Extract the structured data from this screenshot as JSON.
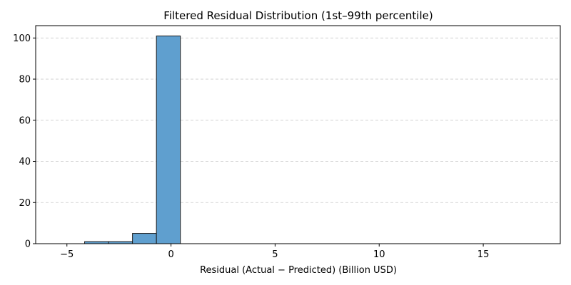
{
  "chart_data": {
    "type": "bar",
    "title": "Filtered Residual Distribution (1st–99th percentile)",
    "xlabel": "Residual (Actual − Predicted) (Billion USD)",
    "ylabel": "",
    "xlim": [
      -6.5,
      18.7
    ],
    "ylim": [
      0,
      106
    ],
    "xticks": [
      -5,
      0,
      5,
      10,
      15
    ],
    "xtick_labels": [
      "−5",
      "0",
      "5",
      "10",
      "15"
    ],
    "yticks": [
      0,
      20,
      40,
      60,
      80,
      100
    ],
    "ytick_labels": [
      "0",
      "20",
      "40",
      "60",
      "80",
      "100"
    ],
    "grid": "y-dashed",
    "bar_color": "#5f9fcf",
    "edge_color": "#1a1a1a",
    "bins": [
      {
        "start": -5.3,
        "end": -4.15,
        "count": 0
      },
      {
        "start": -4.15,
        "end": -3.0,
        "count": 1
      },
      {
        "start": -3.0,
        "end": -1.85,
        "count": 1
      },
      {
        "start": -1.85,
        "end": -0.7,
        "count": 5
      },
      {
        "start": -0.7,
        "end": 0.45,
        "count": 101
      },
      {
        "start": 0.45,
        "end": 1.6,
        "count": 0
      },
      {
        "start": 1.6,
        "end": 2.75,
        "count": 0
      },
      {
        "start": 2.75,
        "end": 3.9,
        "count": 0
      },
      {
        "start": 3.9,
        "end": 5.05,
        "count": 0
      },
      {
        "start": 5.05,
        "end": 6.2,
        "count": 0
      },
      {
        "start": 6.2,
        "end": 7.35,
        "count": 0
      },
      {
        "start": 7.35,
        "end": 8.5,
        "count": 0
      },
      {
        "start": 8.5,
        "end": 9.65,
        "count": 0
      },
      {
        "start": 9.65,
        "end": 10.8,
        "count": 0
      },
      {
        "start": 10.8,
        "end": 11.95,
        "count": 0
      },
      {
        "start": 11.95,
        "end": 13.1,
        "count": 0
      },
      {
        "start": 13.1,
        "end": 14.25,
        "count": 0
      },
      {
        "start": 14.25,
        "end": 15.4,
        "count": 0
      },
      {
        "start": 15.4,
        "end": 16.55,
        "count": 0
      },
      {
        "start": 16.55,
        "end": 17.7,
        "count": 0
      }
    ]
  }
}
